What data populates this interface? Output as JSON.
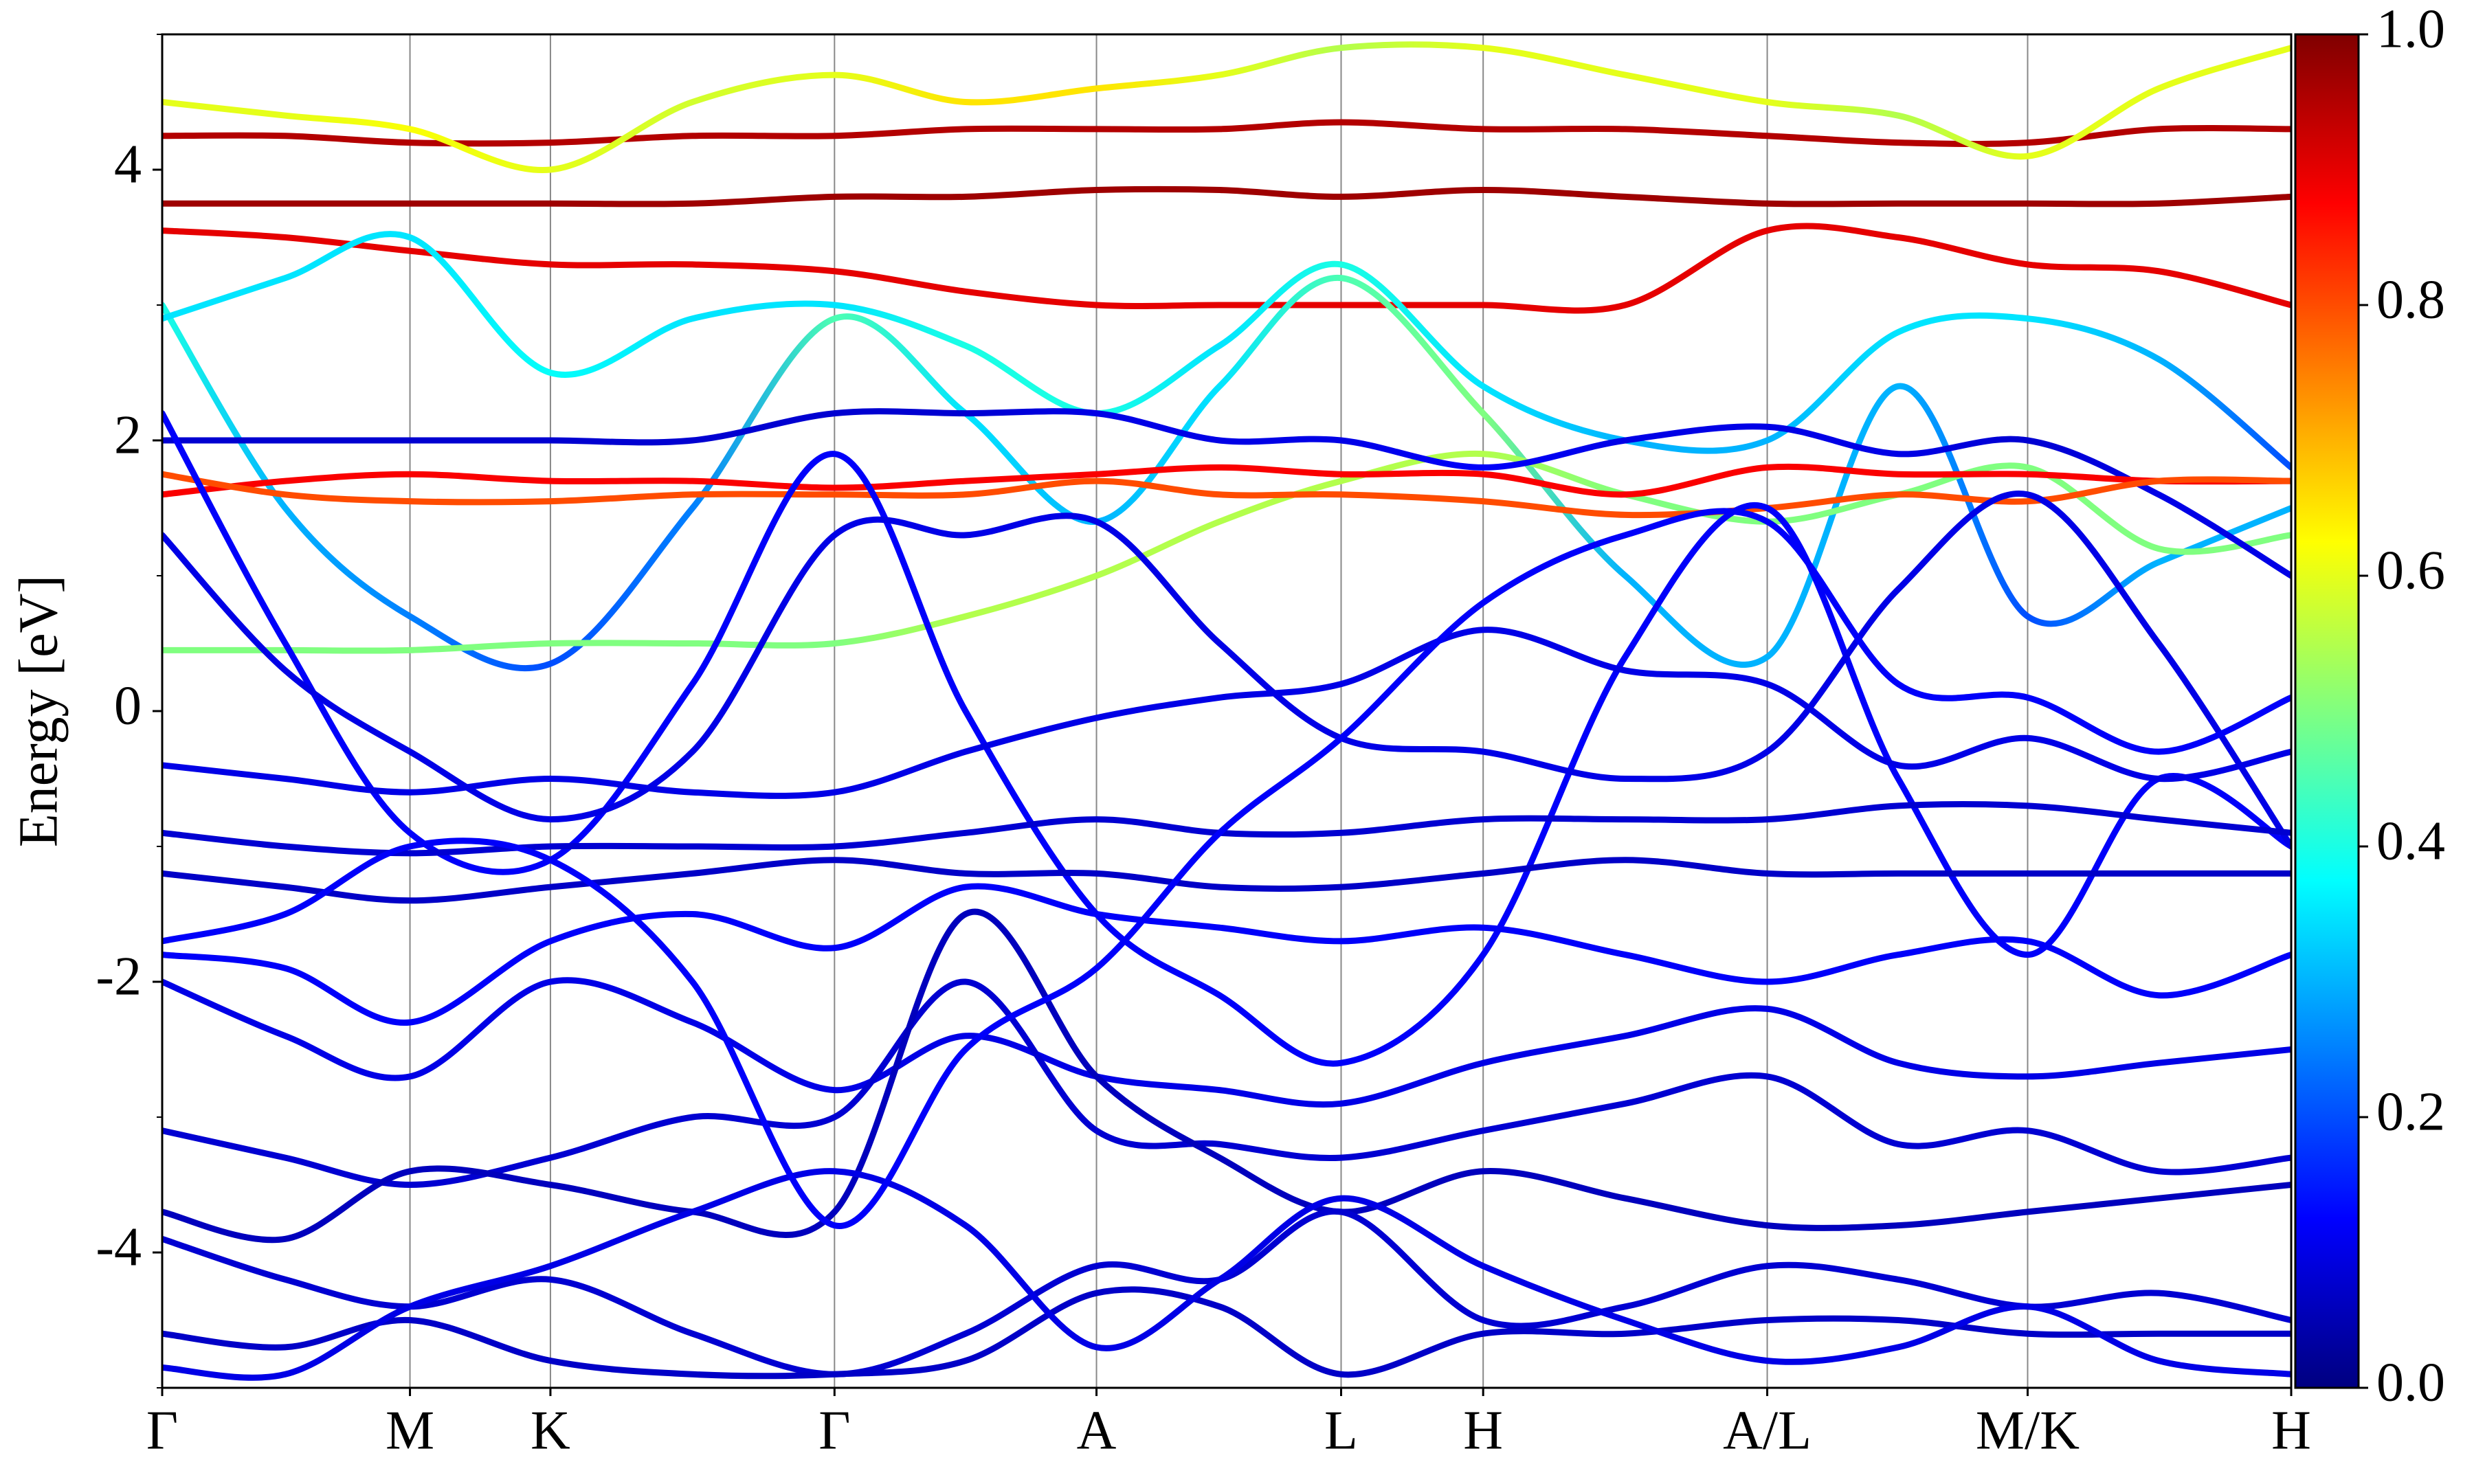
{
  "chart_data": {
    "type": "band-structure",
    "ylabel": "Energy [eV]",
    "x": [
      0,
      78,
      157,
      246,
      336,
      426,
      509,
      592,
      670,
      747,
      837,
      927,
      1017,
      1100,
      1182,
      1265,
      1349
    ],
    "xlim": [
      0,
      1349
    ],
    "xticks": [
      {
        "value": 0,
        "label": "Γ"
      },
      {
        "value": 157,
        "label": "M"
      },
      {
        "value": 246,
        "label": "K"
      },
      {
        "value": 426,
        "label": "Γ"
      },
      {
        "value": 592,
        "label": "A"
      },
      {
        "value": 747,
        "label": "L"
      },
      {
        "value": 837,
        "label": "H"
      },
      {
        "value": 1017,
        "label": "A/L"
      },
      {
        "value": 1182,
        "label": "M/K"
      },
      {
        "value": 1349,
        "label": "H"
      }
    ],
    "xgrid": true,
    "ylim": [
      -5,
      5
    ],
    "yticks": [
      -4,
      -2,
      0,
      2,
      4
    ],
    "yticks_minor": [
      -5,
      -3,
      -1,
      1,
      3,
      5
    ],
    "colormap": "jet",
    "colorbar": {
      "lim": [
        0,
        1
      ],
      "ticks": [
        {
          "value": 0,
          "label": "0.0"
        },
        {
          "value": 0.2,
          "label": "0.2"
        },
        {
          "value": 0.4,
          "label": "0.4"
        },
        {
          "value": 0.6,
          "label": "0.6"
        },
        {
          "value": 0.8,
          "label": "0.8"
        },
        {
          "value": 1,
          "label": "1.0"
        }
      ]
    },
    "series": [
      {
        "values": [
          4.25,
          4.25,
          4.2,
          4.2,
          4.25,
          4.25,
          4.3,
          4.3,
          4.3,
          4.35,
          4.3,
          4.3,
          4.25,
          4.2,
          4.2,
          4.3,
          4.3
        ],
        "weights": [
          0.95,
          0.95,
          0.95,
          0.95,
          0.95,
          0.95,
          0.95,
          0.95,
          0.95,
          0.95,
          0.95,
          0.95,
          0.95,
          0.95,
          0.95,
          0.95,
          0.95
        ]
      },
      {
        "values": [
          3.75,
          3.75,
          3.75,
          3.75,
          3.75,
          3.8,
          3.8,
          3.85,
          3.85,
          3.8,
          3.85,
          3.8,
          3.75,
          3.75,
          3.75,
          3.75,
          3.8
        ],
        "weights": [
          0.97,
          0.97,
          0.97,
          0.97,
          0.97,
          0.97,
          0.97,
          0.97,
          0.97,
          0.97,
          0.97,
          0.97,
          0.97,
          0.97,
          0.97,
          0.97,
          0.97
        ]
      },
      {
        "values": [
          3.55,
          3.5,
          3.4,
          3.3,
          3.3,
          3.25,
          3.1,
          3.0,
          3.0,
          3.0,
          3.0,
          3.0,
          3.55,
          3.5,
          3.3,
          3.25,
          3.0
        ],
        "weights": [
          0.9,
          0.9,
          0.9,
          0.9,
          0.9,
          0.9,
          0.9,
          0.9,
          0.9,
          0.9,
          0.9,
          0.9,
          0.9,
          0.9,
          0.9,
          0.9,
          0.9
        ]
      },
      {
        "values": [
          4.5,
          4.4,
          4.3,
          4.0,
          4.5,
          4.7,
          4.5,
          4.6,
          4.7,
          4.9,
          4.9,
          4.7,
          4.5,
          4.4,
          4.1,
          4.6,
          4.9
        ],
        "weights": [
          0.6,
          0.6,
          0.62,
          0.6,
          0.58,
          0.6,
          0.65,
          0.65,
          0.6,
          0.55,
          0.6,
          0.6,
          0.6,
          0.55,
          0.6,
          0.6,
          0.6
        ]
      },
      {
        "values": [
          3.0,
          1.5,
          0.7,
          0.35,
          1.5,
          2.9,
          2.2,
          1.4,
          2.4,
          3.2,
          2.2,
          1.0,
          0.4,
          2.4,
          0.7,
          1.1,
          1.5
        ],
        "weights": [
          0.4,
          0.3,
          0.25,
          0.2,
          0.25,
          0.45,
          0.35,
          0.3,
          0.35,
          0.45,
          0.5,
          0.3,
          0.3,
          0.3,
          0.2,
          0.3,
          0.3
        ]
      },
      {
        "values": [
          2.9,
          3.2,
          3.5,
          2.5,
          2.9,
          3.0,
          2.7,
          2.2,
          2.7,
          3.3,
          2.4,
          2.0,
          2.0,
          2.8,
          2.9,
          2.6,
          1.8
        ],
        "weights": [
          0.35,
          0.35,
          0.35,
          0.38,
          0.35,
          0.35,
          0.4,
          0.4,
          0.35,
          0.4,
          0.35,
          0.3,
          0.3,
          0.35,
          0.35,
          0.3,
          0.2
        ]
      },
      {
        "values": [
          0.45,
          0.45,
          0.45,
          0.5,
          0.5,
          0.5,
          0.7,
          1.0,
          1.4,
          1.7,
          1.9,
          1.6,
          1.4,
          1.6,
          1.8,
          1.2,
          1.3
        ],
        "weights": [
          0.5,
          0.5,
          0.5,
          0.5,
          0.5,
          0.5,
          0.55,
          0.55,
          0.55,
          0.55,
          0.55,
          0.5,
          0.5,
          0.5,
          0.5,
          0.5,
          0.5
        ]
      },
      {
        "values": [
          2.0,
          2.0,
          2.0,
          2.0,
          2.0,
          2.2,
          2.2,
          2.2,
          2.0,
          2.0,
          1.8,
          2.0,
          2.1,
          1.9,
          2.0,
          1.6,
          1.0
        ],
        "weights": [
          0.08,
          0.08,
          0.08,
          0.08,
          0.08,
          0.08,
          0.08,
          0.1,
          0.1,
          0.1,
          0.12,
          0.1,
          0.1,
          0.1,
          0.08,
          0.1,
          0.1
        ]
      },
      {
        "values": [
          1.6,
          1.7,
          1.75,
          1.7,
          1.7,
          1.65,
          1.7,
          1.75,
          1.8,
          1.75,
          1.75,
          1.6,
          1.8,
          1.75,
          1.75,
          1.7,
          1.7
        ],
        "weights": [
          0.88,
          0.88,
          0.88,
          0.88,
          0.88,
          0.88,
          0.88,
          0.88,
          0.88,
          0.88,
          0.88,
          0.88,
          0.88,
          0.88,
          0.88,
          0.88,
          0.88
        ]
      },
      {
        "values": [
          1.75,
          1.6,
          1.55,
          1.55,
          1.6,
          1.6,
          1.6,
          1.7,
          1.6,
          1.6,
          1.55,
          1.45,
          1.5,
          1.6,
          1.55,
          1.7,
          1.7
        ],
        "weights": [
          0.8,
          0.8,
          0.8,
          0.8,
          0.8,
          0.8,
          0.8,
          0.8,
          0.8,
          0.8,
          0.8,
          0.8,
          0.8,
          0.8,
          0.8,
          0.8,
          0.8
        ]
      },
      {
        "values": [
          2.2,
          0.5,
          -0.9,
          -1.1,
          0.2,
          1.9,
          0.0,
          -1.5,
          -2.1,
          -2.6,
          -1.8,
          0.4,
          1.5,
          -0.5,
          -1.8,
          -0.5,
          -1.0
        ],
        "weights": [
          0.12,
          0.12,
          0.12,
          0.12,
          0.12,
          0.12,
          0.12,
          0.12,
          0.12,
          0.12,
          0.12,
          0.12,
          0.12,
          0.12,
          0.12,
          0.12,
          0.12
        ]
      },
      {
        "values": [
          1.3,
          0.3,
          -0.3,
          -0.8,
          -0.3,
          1.3,
          1.3,
          1.4,
          0.5,
          -0.2,
          -0.3,
          -0.5,
          -0.3,
          0.9,
          1.6,
          0.5,
          -1.0
        ],
        "weights": [
          0.1,
          0.1,
          0.1,
          0.1,
          0.1,
          0.1,
          0.1,
          0.1,
          0.1,
          0.1,
          0.1,
          0.1,
          0.1,
          0.1,
          0.1,
          0.1,
          0.1
        ]
      },
      {
        "values": [
          -0.4,
          -0.5,
          -0.6,
          -0.5,
          -0.6,
          -0.6,
          -0.3,
          -0.05,
          0.1,
          0.2,
          0.6,
          0.3,
          0.2,
          -0.4,
          -0.2,
          -0.5,
          -0.3
        ],
        "weights": [
          0.1,
          0.1,
          0.1,
          0.1,
          0.1,
          0.1,
          0.1,
          0.1,
          0.1,
          0.1,
          0.1,
          0.1,
          0.1,
          0.1,
          0.1,
          0.1,
          0.1
        ]
      },
      {
        "values": [
          -0.9,
          -1.0,
          -1.05,
          -1.0,
          -1.0,
          -1.0,
          -0.9,
          -0.8,
          -0.9,
          -0.9,
          -0.8,
          -0.8,
          -0.8,
          -0.7,
          -0.7,
          -0.8,
          -0.9
        ],
        "weights": [
          0.08,
          0.08,
          0.08,
          0.08,
          0.08,
          0.08,
          0.08,
          0.08,
          0.08,
          0.08,
          0.08,
          0.08,
          0.08,
          0.08,
          0.08,
          0.08,
          0.08
        ]
      },
      {
        "values": [
          -1.2,
          -1.3,
          -1.4,
          -1.3,
          -1.2,
          -1.1,
          -1.2,
          -1.2,
          -1.3,
          -1.3,
          -1.2,
          -1.1,
          -1.2,
          -1.2,
          -1.2,
          -1.2,
          -1.2
        ],
        "weights": [
          0.07,
          0.07,
          0.07,
          0.07,
          0.07,
          0.07,
          0.07,
          0.07,
          0.07,
          0.07,
          0.07,
          0.07,
          0.07,
          0.07,
          0.07,
          0.07,
          0.07
        ]
      },
      {
        "values": [
          -1.8,
          -1.9,
          -2.3,
          -1.7,
          -1.5,
          -1.75,
          -1.3,
          -1.5,
          -1.6,
          -1.7,
          -1.6,
          -1.8,
          -2.0,
          -1.8,
          -1.7,
          -2.1,
          -1.8
        ],
        "weights": [
          0.12,
          0.12,
          0.12,
          0.12,
          0.12,
          0.12,
          0.12,
          0.12,
          0.12,
          0.12,
          0.12,
          0.12,
          0.12,
          0.12,
          0.12,
          0.12,
          0.12
        ]
      },
      {
        "values": [
          -2.0,
          -2.4,
          -2.7,
          -2.0,
          -2.3,
          -2.8,
          -2.4,
          -2.7,
          -2.8,
          -2.9,
          -2.6,
          -2.4,
          -2.2,
          -2.6,
          -2.7,
          -2.6,
          -2.5
        ],
        "weights": [
          0.1,
          0.1,
          0.1,
          0.1,
          0.1,
          0.1,
          0.1,
          0.1,
          0.1,
          0.1,
          0.1,
          0.1,
          0.1,
          0.1,
          0.1,
          0.1,
          0.1
        ]
      },
      {
        "values": [
          -3.1,
          -3.3,
          -3.5,
          -3.3,
          -3.0,
          -3.0,
          -2.0,
          -3.1,
          -3.2,
          -3.3,
          -3.1,
          -2.9,
          -2.7,
          -3.2,
          -3.1,
          -3.4,
          -3.3
        ],
        "weights": [
          0.08,
          0.08,
          0.08,
          0.08,
          0.08,
          0.08,
          0.08,
          0.08,
          0.08,
          0.08,
          0.08,
          0.08,
          0.08,
          0.08,
          0.08,
          0.08,
          0.08
        ]
      },
      {
        "values": [
          -3.7,
          -3.9,
          -3.4,
          -3.5,
          -3.7,
          -3.7,
          -1.5,
          -2.7,
          -3.3,
          -3.7,
          -3.4,
          -3.6,
          -3.8,
          -3.8,
          -3.7,
          -3.6,
          -3.5
        ],
        "weights": [
          0.06,
          0.06,
          0.06,
          0.06,
          0.06,
          0.06,
          0.06,
          0.06,
          0.06,
          0.06,
          0.06,
          0.06,
          0.06,
          0.06,
          0.06,
          0.06,
          0.06
        ]
      },
      {
        "values": [
          -3.9,
          -4.2,
          -4.4,
          -4.2,
          -4.6,
          -4.9,
          -4.6,
          -4.1,
          -4.2,
          -3.7,
          -4.5,
          -4.4,
          -4.1,
          -4.2,
          -4.4,
          -4.3,
          -4.5
        ],
        "weights": [
          0.08,
          0.08,
          0.08,
          0.08,
          0.08,
          0.08,
          0.08,
          0.08,
          0.08,
          0.08,
          0.08,
          0.08,
          0.08,
          0.08,
          0.08,
          0.08,
          0.08
        ]
      },
      {
        "values": [
          -4.6,
          -4.7,
          -4.5,
          -4.8,
          -4.9,
          -4.9,
          -4.8,
          -4.3,
          -4.4,
          -4.9,
          -4.6,
          -4.6,
          -4.5,
          -4.5,
          -4.6,
          -4.6,
          -4.6
        ],
        "weights": [
          0.07,
          0.07,
          0.07,
          0.07,
          0.07,
          0.07,
          0.07,
          0.07,
          0.07,
          0.07,
          0.07,
          0.07,
          0.07,
          0.07,
          0.07,
          0.07,
          0.07
        ]
      },
      {
        "values": [
          -4.85,
          -4.9,
          -4.4,
          -4.1,
          -3.7,
          -3.4,
          -3.8,
          -4.7,
          -4.2,
          -3.6,
          -4.1,
          -4.5,
          -4.8,
          -4.7,
          -4.4,
          -4.8,
          -4.9
        ],
        "weights": [
          0.1,
          0.1,
          0.1,
          0.1,
          0.1,
          0.1,
          0.1,
          0.1,
          0.1,
          0.1,
          0.1,
          0.1,
          0.1,
          0.1,
          0.1,
          0.1,
          0.1
        ]
      },
      {
        "values": [
          -1.7,
          -1.5,
          -1.0,
          -1.1,
          -2.0,
          -3.8,
          -2.5,
          -1.9,
          -0.9,
          -0.2,
          0.8,
          1.3,
          1.4,
          0.2,
          0.1,
          -0.3,
          0.1
        ],
        "weights": [
          0.12,
          0.12,
          0.12,
          0.12,
          0.12,
          0.12,
          0.12,
          0.12,
          0.12,
          0.12,
          0.12,
          0.12,
          0.12,
          0.12,
          0.12,
          0.12,
          0.12
        ]
      }
    ]
  }
}
